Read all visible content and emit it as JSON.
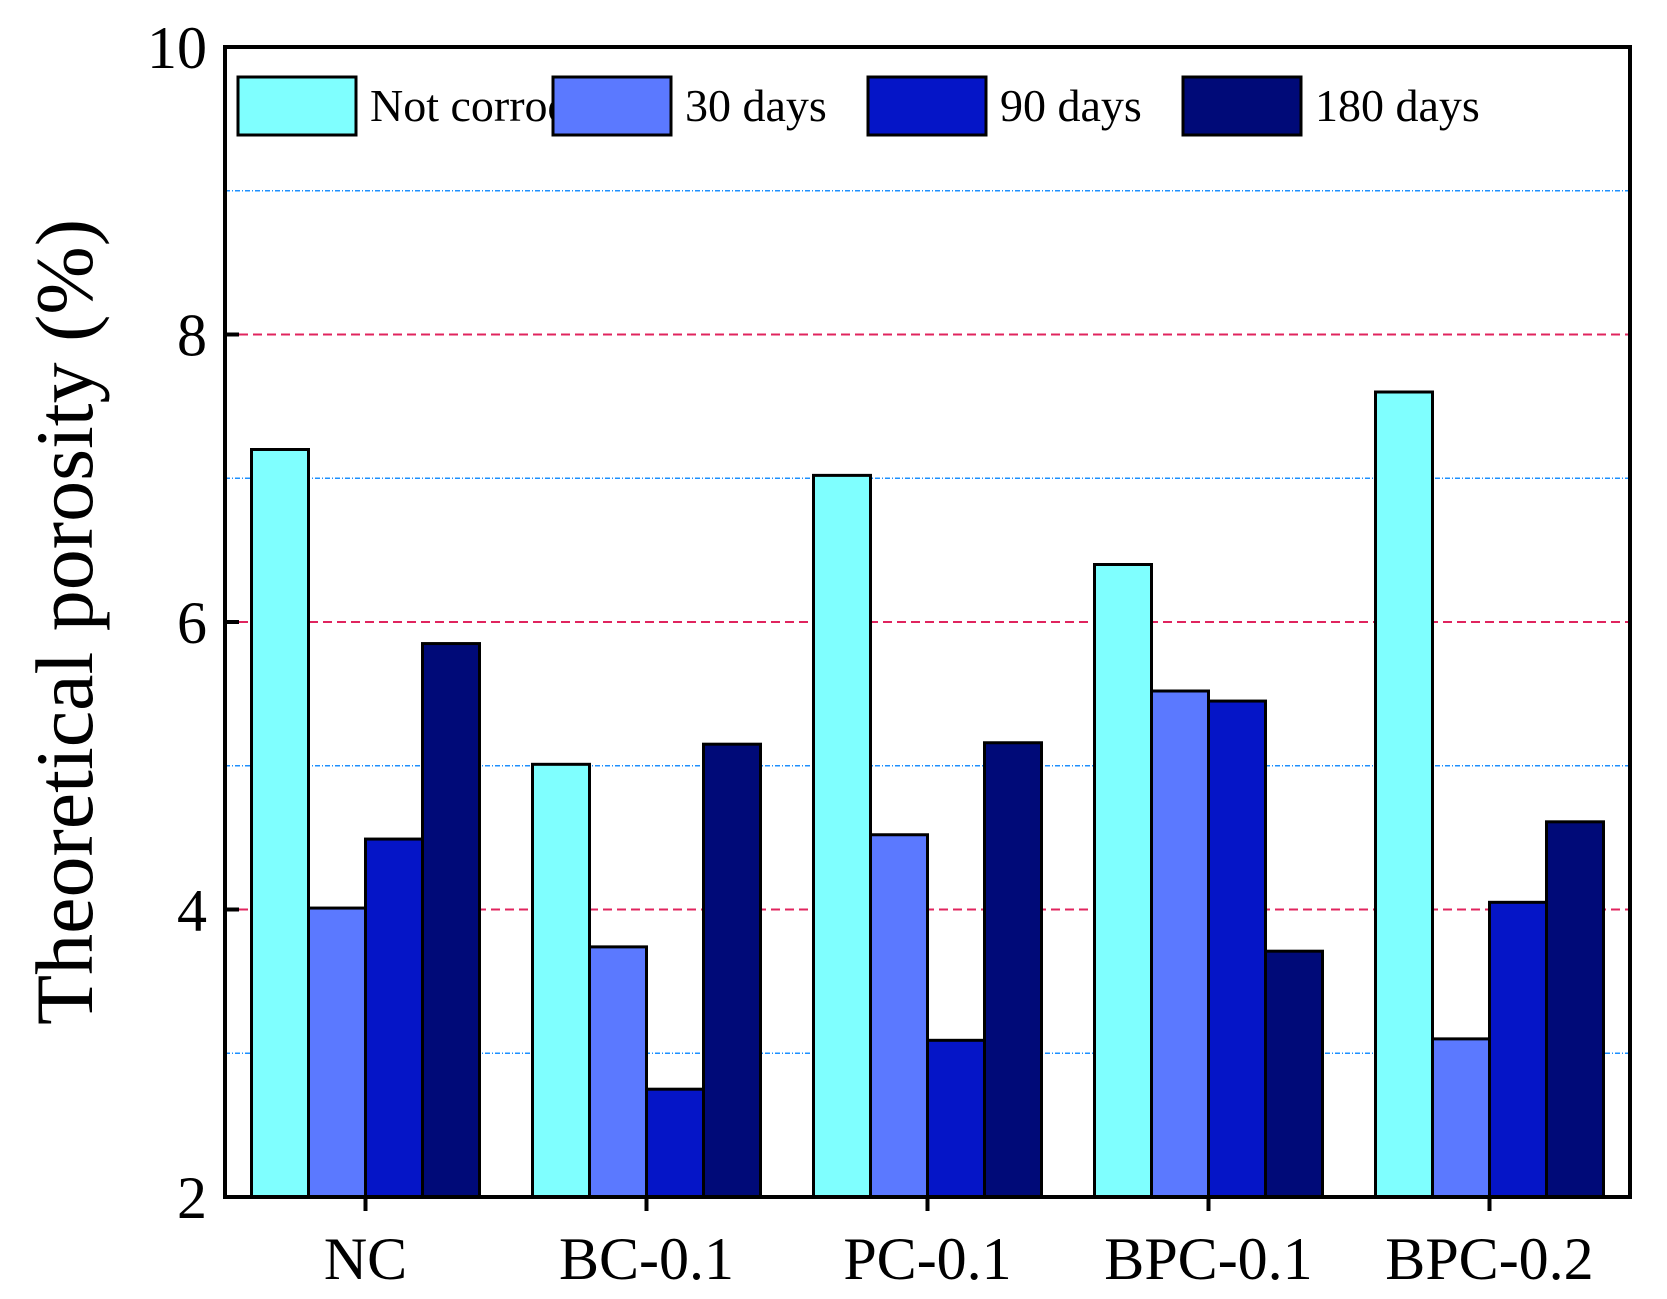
{
  "chart_data": {
    "type": "bar",
    "title": "",
    "xlabel": "",
    "ylabel": "Theoretical porosity (%)",
    "categories": [
      "NC",
      "BC-0.1",
      "PC-0.1",
      "BPC-0.1",
      "BPC-0.2"
    ],
    "series": [
      {
        "name": "Not corroded",
        "color": "#7fffff",
        "values": [
          7.2,
          5.01,
          7.02,
          6.4,
          7.6
        ]
      },
      {
        "name": "30 days",
        "color": "#5b79ff",
        "values": [
          4.01,
          3.74,
          4.52,
          5.52,
          3.1
        ]
      },
      {
        "name": "90 days",
        "color": "#0515c7",
        "values": [
          4.49,
          2.75,
          3.09,
          5.45,
          4.05
        ]
      },
      {
        "name": "180 days",
        "color": "#000a78",
        "values": [
          5.85,
          5.15,
          5.16,
          3.71,
          4.61
        ]
      }
    ],
    "ylim": [
      2,
      10
    ],
    "yticks": [
      "2",
      "4",
      "6",
      "8",
      "10"
    ],
    "minor_gridlines": [
      3,
      5,
      7,
      9
    ],
    "major_gridlines": [
      4,
      6,
      8
    ],
    "minor_grid_color": "#1e90ff",
    "major_grid_color": "#e0245e",
    "legend_position": "top"
  }
}
